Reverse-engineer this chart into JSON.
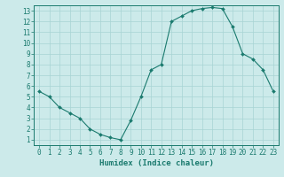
{
  "x": [
    0,
    1,
    2,
    3,
    4,
    5,
    6,
    7,
    8,
    9,
    10,
    11,
    12,
    13,
    14,
    15,
    16,
    17,
    18,
    19,
    20,
    21,
    22,
    23
  ],
  "y": [
    5.5,
    5.0,
    4.0,
    3.5,
    3.0,
    2.0,
    1.5,
    1.2,
    1.0,
    2.8,
    5.0,
    7.5,
    8.0,
    12.0,
    12.5,
    13.0,
    13.2,
    13.3,
    13.2,
    11.5,
    9.0,
    8.5,
    7.5,
    5.5
  ],
  "line_color": "#1a7a6e",
  "marker": "D",
  "marker_size": 2.0,
  "bg_color": "#cceaea",
  "grid_color": "#a8d4d4",
  "xlabel": "Humidex (Indice chaleur)",
  "xlim": [
    -0.5,
    23.5
  ],
  "ylim": [
    0.5,
    13.5
  ],
  "xticks": [
    0,
    1,
    2,
    3,
    4,
    5,
    6,
    7,
    8,
    9,
    10,
    11,
    12,
    13,
    14,
    15,
    16,
    17,
    18,
    19,
    20,
    21,
    22,
    23
  ],
  "yticks": [
    1,
    2,
    3,
    4,
    5,
    6,
    7,
    8,
    9,
    10,
    11,
    12,
    13
  ],
  "xlabel_fontsize": 6.5,
  "tick_fontsize": 5.5
}
